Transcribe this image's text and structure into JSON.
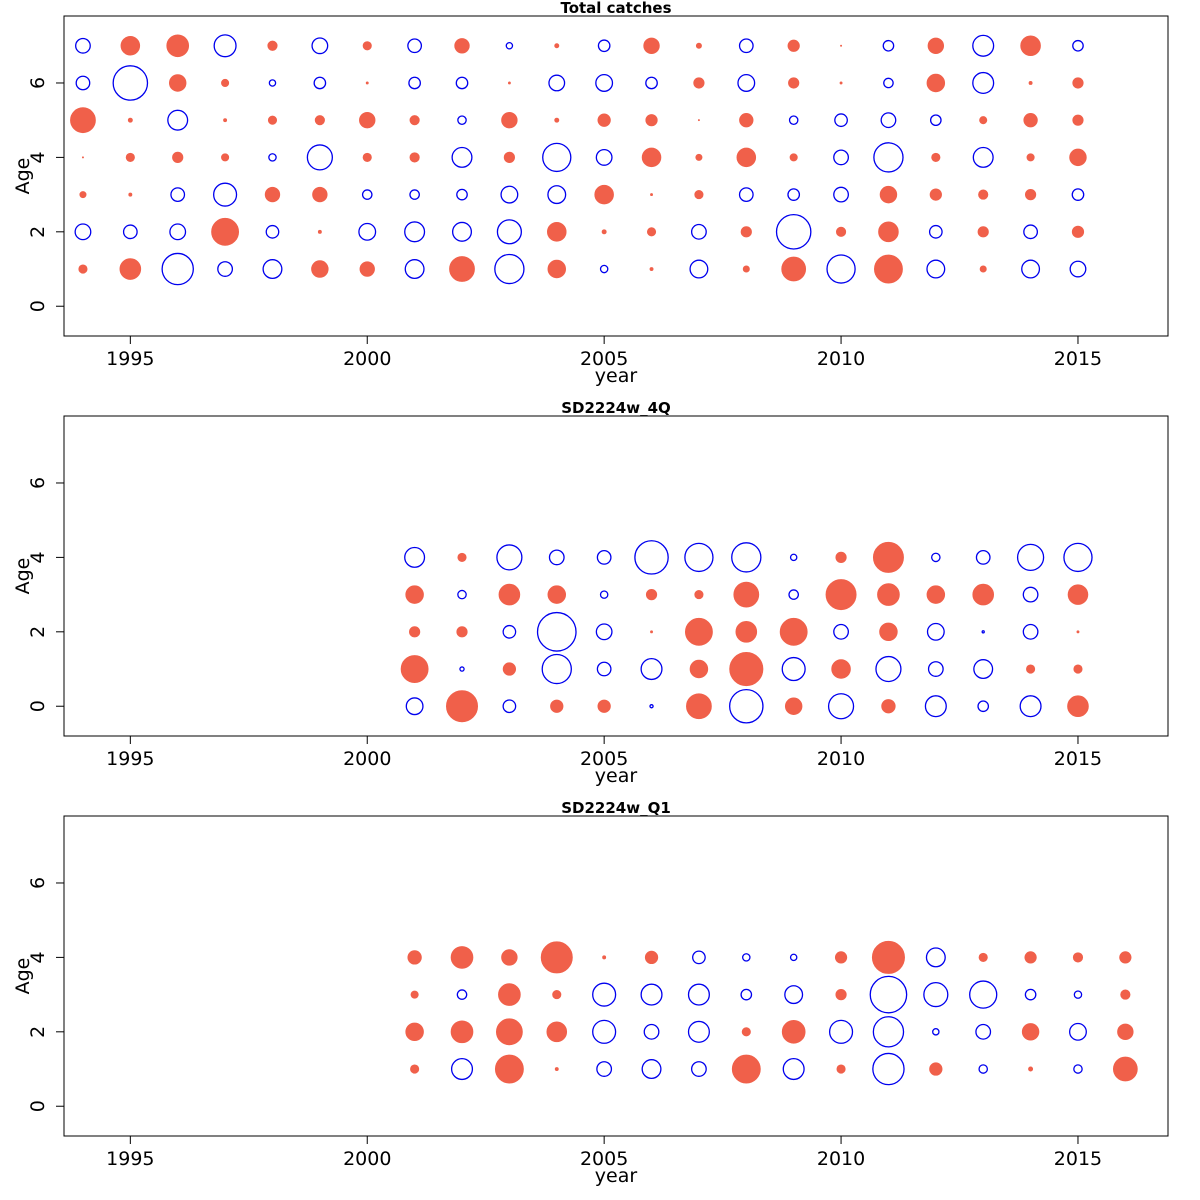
{
  "colors": {
    "positive": "#f0604a",
    "negative": "#0000ee",
    "axis": "#000000"
  },
  "chart_data": [
    {
      "type": "scatter",
      "title": "Total catches",
      "xlabel": "year",
      "ylabel": "Age",
      "xlim": [
        1993.6,
        2016.9
      ],
      "ylim": [
        -0.8,
        7.8
      ],
      "xticks": [
        "1995",
        "2000",
        "2005",
        "2010",
        "2015"
      ],
      "yticks": [
        "0",
        "2",
        "4",
        "6"
      ],
      "grid": false,
      "years": [
        1994,
        1995,
        1996,
        1997,
        1998,
        1999,
        2000,
        2001,
        2002,
        2003,
        2004,
        2005,
        2006,
        2007,
        2008,
        2009,
        2010,
        2011,
        2012,
        2013,
        2014,
        2015
      ],
      "ages": [
        1,
        2,
        3,
        4,
        5,
        6,
        7
      ],
      "residuals": [
        [
          0.8,
          2.0,
          -3.0,
          -1.4,
          -1.8,
          1.6,
          1.4,
          -1.8,
          2.4,
          -2.8,
          1.7,
          -0.7,
          0.3,
          -1.7,
          0.6,
          2.3,
          -2.7,
          2.7,
          -1.7,
          0.6,
          -1.7,
          -1.5
        ],
        [
          -1.5,
          -1.3,
          -1.5,
          2.6,
          -1.2,
          0.3,
          -1.6,
          -1.9,
          -1.8,
          -2.3,
          1.8,
          0.4,
          0.8,
          -1.4,
          1.0,
          -3.3,
          0.9,
          1.9,
          -1.2,
          1.0,
          -1.3,
          1.1
        ],
        [
          0.6,
          0.3,
          -1.3,
          -2.2,
          1.4,
          1.4,
          -0.9,
          -0.9,
          -1.0,
          -1.6,
          -1.7,
          1.8,
          0.2,
          0.8,
          -1.3,
          -1.1,
          -1.4,
          1.6,
          1.1,
          0.9,
          1.0,
          -1.1
        ],
        [
          0.1,
          0.8,
          1.0,
          0.7,
          -0.7,
          -2.4,
          0.8,
          0.9,
          -1.9,
          1.0,
          -2.7,
          -1.5,
          1.8,
          0.6,
          1.8,
          0.7,
          -1.4,
          -2.8,
          0.8,
          -1.9,
          0.7,
          1.6
        ],
        [
          2.4,
          0.4,
          -1.9,
          0.3,
          0.8,
          0.9,
          1.5,
          0.9,
          -0.8,
          1.5,
          0.4,
          1.2,
          1.1,
          0.1,
          1.3,
          -0.8,
          -1.2,
          -1.4,
          -1.0,
          0.7,
          1.3,
          1.0
        ],
        [
          -1.3,
          -3.3,
          1.6,
          0.7,
          -0.6,
          -1.1,
          0.2,
          -1.1,
          -1.1,
          0.2,
          -1.5,
          -1.6,
          -1.1,
          1.0,
          -1.6,
          1.0,
          0.2,
          -0.9,
          1.7,
          -2.0,
          0.3,
          1.0
        ],
        [
          -1.4,
          1.8,
          2.1,
          -2.1,
          0.9,
          -1.5,
          0.8,
          -1.3,
          1.4,
          -0.6,
          0.4,
          -1.1,
          1.5,
          0.5,
          -1.3,
          1.1,
          0.1,
          -1.0,
          1.5,
          -2.0,
          1.9,
          -1.0
        ]
      ]
    },
    {
      "type": "scatter",
      "title": "SD2224w_4Q",
      "xlabel": "year",
      "ylabel": "Age",
      "xlim": [
        1993.6,
        2016.9
      ],
      "ylim": [
        -0.8,
        7.8
      ],
      "xticks": [
        "1995",
        "2000",
        "2005",
        "2010",
        "2015"
      ],
      "yticks": [
        "0",
        "2",
        "4",
        "6"
      ],
      "grid": false,
      "years": [
        2001,
        2002,
        2003,
        2004,
        2005,
        2006,
        2007,
        2008,
        2009,
        2010,
        2011,
        2012,
        2013,
        2014,
        2015
      ],
      "ages": [
        0,
        1,
        2,
        3,
        4
      ],
      "residuals": [
        [
          -1.6,
          3.0,
          -1.2,
          1.2,
          1.2,
          -0.3,
          2.4,
          -3.2,
          1.6,
          -2.4,
          1.3,
          -2.0,
          -1.0,
          -2.0,
          2.0
        ],
        [
          2.6,
          -0.4,
          1.2,
          -2.8,
          -1.3,
          -2.0,
          1.7,
          3.2,
          -2.2,
          1.8,
          -2.4,
          -1.4,
          -1.8,
          0.8,
          0.8
        ],
        [
          1.0,
          1.0,
          -1.2,
          -3.7,
          -1.5,
          0.2,
          2.6,
          2.0,
          2.6,
          -1.4,
          1.7,
          -1.6,
          -0.2,
          -1.4,
          0.2
        ],
        [
          1.7,
          -0.8,
          2.0,
          1.7,
          -0.7,
          1.0,
          0.8,
          2.4,
          -0.9,
          2.9,
          2.1,
          1.7,
          2.0,
          -1.4,
          1.9
        ],
        [
          -1.9,
          0.8,
          -2.4,
          -1.4,
          -1.3,
          -3.2,
          -2.7,
          -2.8,
          -0.6,
          1.0,
          2.9,
          -0.8,
          -1.3,
          -2.5,
          -2.7
        ]
      ]
    },
    {
      "type": "scatter",
      "title": "SD2224w_Q1",
      "xlabel": "year",
      "ylabel": "Age",
      "xlim": [
        1993.6,
        2016.9
      ],
      "ylim": [
        -0.8,
        7.8
      ],
      "xticks": [
        "1995",
        "2000",
        "2005",
        "2010",
        "2015"
      ],
      "yticks": [
        "0",
        "2",
        "4",
        "6"
      ],
      "grid": false,
      "years": [
        2001,
        2002,
        2003,
        2004,
        2005,
        2006,
        2007,
        2008,
        2009,
        2010,
        2011,
        2012,
        2013,
        2014,
        2015,
        2016
      ],
      "ages": [
        1,
        2,
        3,
        4
      ],
      "residuals": [
        [
          0.8,
          -2.0,
          2.7,
          0.3,
          -1.4,
          -1.8,
          -1.4,
          2.7,
          -2.0,
          0.8,
          -3.0,
          1.2,
          -0.8,
          0.4,
          -0.8,
          2.3
        ],
        [
          1.7,
          2.1,
          2.5,
          1.9,
          -2.2,
          -1.4,
          -2.0,
          0.8,
          2.2,
          -2.2,
          -2.9,
          -0.6,
          -1.4,
          1.6,
          -1.6,
          1.5
        ],
        [
          0.7,
          -0.9,
          2.1,
          0.8,
          -2.2,
          -2.0,
          -2.0,
          -1.0,
          -1.7,
          1.0,
          -3.5,
          -2.3,
          -2.6,
          -1.0,
          -0.7,
          0.9
        ],
        [
          1.3,
          2.1,
          1.5,
          3.0,
          0.3,
          1.2,
          -1.2,
          -0.7,
          -0.6,
          1.1,
          3.1,
          -1.8,
          0.8,
          1.1,
          0.9,
          1.1
        ]
      ]
    }
  ]
}
